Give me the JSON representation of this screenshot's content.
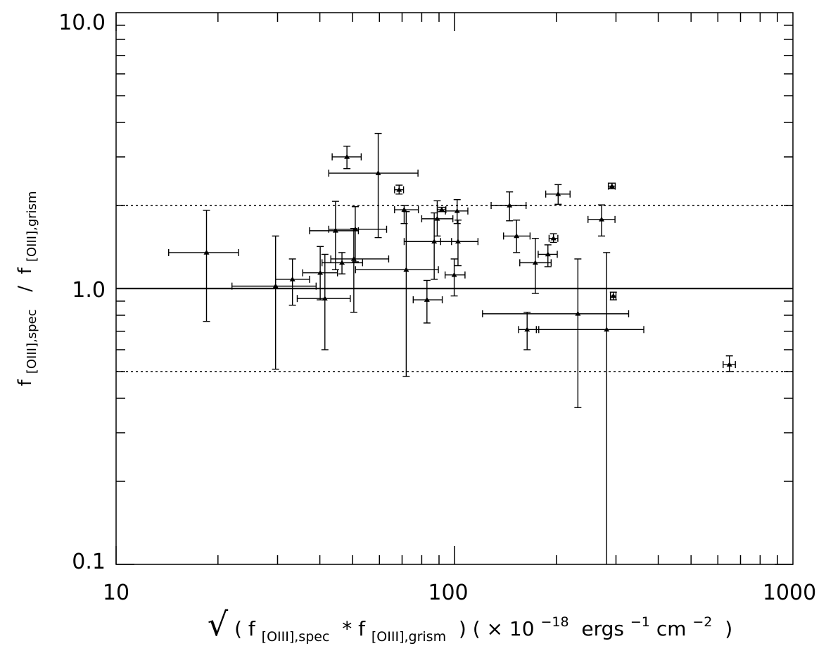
{
  "chart_data": {
    "type": "scatter",
    "x_scale": "log",
    "y_scale": "log",
    "xlim": [
      10,
      1000
    ],
    "ylim": [
      0.1,
      10
    ],
    "x_ticks": [
      {
        "value": 10,
        "label": "10"
      },
      {
        "value": 100,
        "label": "100"
      },
      {
        "value": 1000,
        "label": "1000"
      }
    ],
    "y_ticks": [
      {
        "value": 0.1,
        "label": "0.1"
      },
      {
        "value": 1,
        "label": "1.0"
      },
      {
        "value": 10,
        "label": "10.0"
      }
    ],
    "xlabel": {
      "sqrt": "√",
      "open": "( f",
      "sub1": "[OIII],spec",
      "mid": " * f",
      "sub2": "[OIII],grism",
      "close1": " ) ( × 10",
      "exp1": "−18",
      "unit1": " ergs",
      "exp2": "−1",
      "unit2": "cm",
      "exp3": "−2",
      "close2": " )"
    },
    "ylabel": {
      "f1": "f",
      "sub1": "[OIII],spec",
      "slash": "  /  f",
      "sub2": "[OIII],grism"
    },
    "reference_lines": [
      {
        "y": 1.0,
        "style": "solid"
      },
      {
        "y": 2.0,
        "style": "dotted"
      },
      {
        "y": 0.5,
        "style": "dotted"
      }
    ],
    "points": [
      {
        "x": 18.5,
        "y": 1.35,
        "xerr": [
          14.3,
          23.0
        ],
        "yerr": [
          0.76,
          1.92
        ]
      },
      {
        "x": 29.6,
        "y": 1.02,
        "xerr": [
          22.0,
          39.0
        ],
        "yerr": [
          0.51,
          1.55
        ]
      },
      {
        "x": 33.2,
        "y": 1.08,
        "xerr": [
          29.6,
          37.3
        ],
        "yerr": [
          0.87,
          1.28
        ]
      },
      {
        "x": 40.1,
        "y": 1.14,
        "xerr": [
          35.6,
          45.1
        ],
        "yerr": [
          0.91,
          1.42
        ]
      },
      {
        "x": 41.4,
        "y": 0.92,
        "xerr": [
          34.3,
          49.2
        ],
        "yerr": [
          0.6,
          1.33
        ]
      },
      {
        "x": 44.5,
        "y": 1.62,
        "xerr": [
          37.3,
          52.0
        ],
        "yerr": [
          1.17,
          2.07
        ]
      },
      {
        "x": 46.5,
        "y": 1.24,
        "xerr": [
          40.6,
          53.5
        ],
        "yerr": [
          1.13,
          1.35
        ]
      },
      {
        "x": 48.1,
        "y": 3.0,
        "xerr": [
          43.5,
          53.0
        ],
        "yerr": [
          2.72,
          3.28
        ]
      },
      {
        "x": 50.4,
        "y": 1.28,
        "xerr": [
          43.1,
          63.9
        ],
        "yerr": [
          0.82,
          1.65
        ]
      },
      {
        "x": 50.9,
        "y": 1.64,
        "xerr": [
          42.5,
          63.0
        ],
        "yerr": [
          1.25,
          1.98
        ]
      },
      {
        "x": 59.5,
        "y": 2.62,
        "xerr": [
          42.5,
          78.0
        ],
        "yerr": [
          1.53,
          3.65
        ]
      },
      {
        "x": 68.6,
        "y": 2.28,
        "xerr": [
          66.5,
          70.7
        ],
        "yerr": [
          2.2,
          2.37
        ]
      },
      {
        "x": 71.0,
        "y": 1.93,
        "xerr": [
          66.5,
          78.2
        ],
        "yerr": [
          1.72,
          2.0
        ]
      },
      {
        "x": 72.0,
        "y": 1.17,
        "xerr": [
          51.0,
          89.6
        ],
        "yerr": [
          0.48,
          1.9
        ]
      },
      {
        "x": 82.9,
        "y": 0.91,
        "xerr": [
          75.5,
          92.0
        ],
        "yerr": [
          0.75,
          1.07
        ]
      },
      {
        "x": 87.1,
        "y": 1.48,
        "xerr": [
          71.0,
          98.0
        ],
        "yerr": [
          1.08,
          1.88
        ]
      },
      {
        "x": 88.9,
        "y": 1.79,
        "xerr": [
          80.0,
          98.9
        ],
        "yerr": [
          1.55,
          2.08
        ]
      },
      {
        "x": 91.7,
        "y": 1.93,
        "xerr": [
          89.0,
          94.3
        ],
        "yerr": [
          1.9,
          1.97
        ]
      },
      {
        "x": 99.8,
        "y": 1.12,
        "xerr": [
          93.8,
          107.4
        ],
        "yerr": [
          0.94,
          1.28
        ]
      },
      {
        "x": 101.8,
        "y": 1.91,
        "xerr": [
          94.0,
          109.5
        ],
        "yerr": [
          1.72,
          2.1
        ]
      },
      {
        "x": 102.4,
        "y": 1.48,
        "xerr": [
          91.0,
          117.3
        ],
        "yerr": [
          1.21,
          1.77
        ]
      },
      {
        "x": 145.4,
        "y": 2.0,
        "xerr": [
          128.3,
          162.7
        ],
        "yerr": [
          1.76,
          2.24
        ]
      },
      {
        "x": 152.5,
        "y": 1.55,
        "xerr": [
          139.6,
          167.2
        ],
        "yerr": [
          1.35,
          1.77
        ]
      },
      {
        "x": 163.9,
        "y": 0.71,
        "xerr": [
          154.6,
          177.4
        ],
        "yerr": [
          0.6,
          0.82
        ]
      },
      {
        "x": 173.3,
        "y": 1.24,
        "xerr": [
          155.9,
          193.0
        ],
        "yerr": [
          0.96,
          1.52
        ]
      },
      {
        "x": 188.8,
        "y": 1.33,
        "xerr": [
          176.7,
          201.2
        ],
        "yerr": [
          1.2,
          1.44
        ]
      },
      {
        "x": 196.1,
        "y": 1.52,
        "xerr": [
          190.3,
          202.0
        ],
        "yerr": [
          1.47,
          1.58
        ]
      },
      {
        "x": 202.4,
        "y": 2.2,
        "xerr": [
          186.0,
          219.5
        ],
        "yerr": [
          2.02,
          2.38
        ]
      },
      {
        "x": 231.5,
        "y": 0.81,
        "xerr": [
          121.0,
          327.0
        ],
        "yerr": [
          0.37,
          1.28
        ]
      },
      {
        "x": 272.0,
        "y": 1.78,
        "xerr": [
          248.0,
          298.0
        ],
        "yerr": [
          1.55,
          2.01
        ]
      },
      {
        "x": 281.5,
        "y": 0.71,
        "xerr": [
          174.5,
          362.5
        ],
        "yerr": [
          0.1,
          1.35
        ]
      },
      {
        "x": 291.9,
        "y": 2.35,
        "xerr": [
          284.8,
          298.5
        ],
        "yerr": [
          2.3,
          2.41
        ]
      },
      {
        "x": 294.7,
        "y": 0.94,
        "xerr": [
          289.0,
          300.0
        ],
        "yerr": [
          0.91,
          0.97
        ]
      },
      {
        "x": 649.0,
        "y": 0.53,
        "xerr": [
          622.0,
          676.0
        ],
        "yerr": [
          0.5,
          0.57
        ]
      }
    ]
  }
}
